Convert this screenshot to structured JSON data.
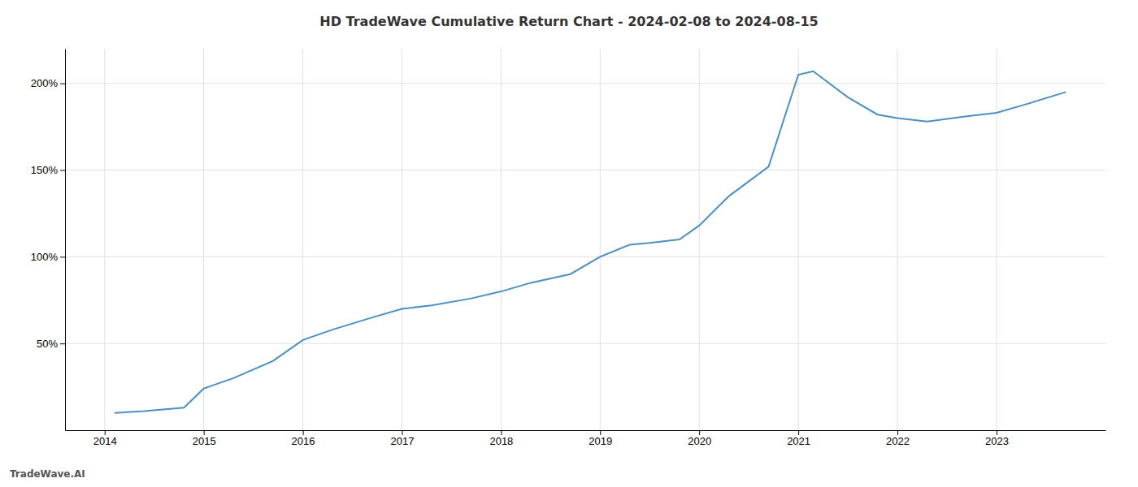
{
  "chart_data": {
    "type": "line",
    "title": "HD TradeWave Cumulative Return Chart - 2024-02-08 to 2024-08-15",
    "annotations": [
      "TradeWave.AI"
    ],
    "x": [
      2014.1,
      2014.4,
      2014.8,
      2015.0,
      2015.3,
      2015.7,
      2016.0,
      2016.3,
      2016.7,
      2017.0,
      2017.3,
      2017.7,
      2018.0,
      2018.3,
      2018.7,
      2019.0,
      2019.3,
      2019.5,
      2019.8,
      2020.0,
      2020.3,
      2020.7,
      2021.0,
      2021.15,
      2021.5,
      2021.8,
      2022.0,
      2022.3,
      2022.7,
      2023.0,
      2023.3,
      2023.7
    ],
    "values": [
      10,
      11,
      13,
      24,
      30,
      40,
      52,
      58,
      65,
      70,
      72,
      76,
      80,
      85,
      90,
      100,
      107,
      108,
      110,
      118,
      135,
      152,
      205,
      207,
      192,
      182,
      180,
      178,
      181,
      183,
      188,
      195
    ],
    "color": "#4a90c4",
    "xlim": [
      2013.6,
      2024.1
    ],
    "xticks": [
      2014,
      2015,
      2016,
      2017,
      2018,
      2019,
      2020,
      2021,
      2022,
      2023
    ],
    "ylim": [
      0,
      220
    ],
    "yticks": [
      {
        "value": 50,
        "label": "50%"
      },
      {
        "value": 100,
        "label": "100%"
      },
      {
        "value": 150,
        "label": "150%"
      },
      {
        "value": 200,
        "label": "200%"
      }
    ],
    "grid": true
  }
}
